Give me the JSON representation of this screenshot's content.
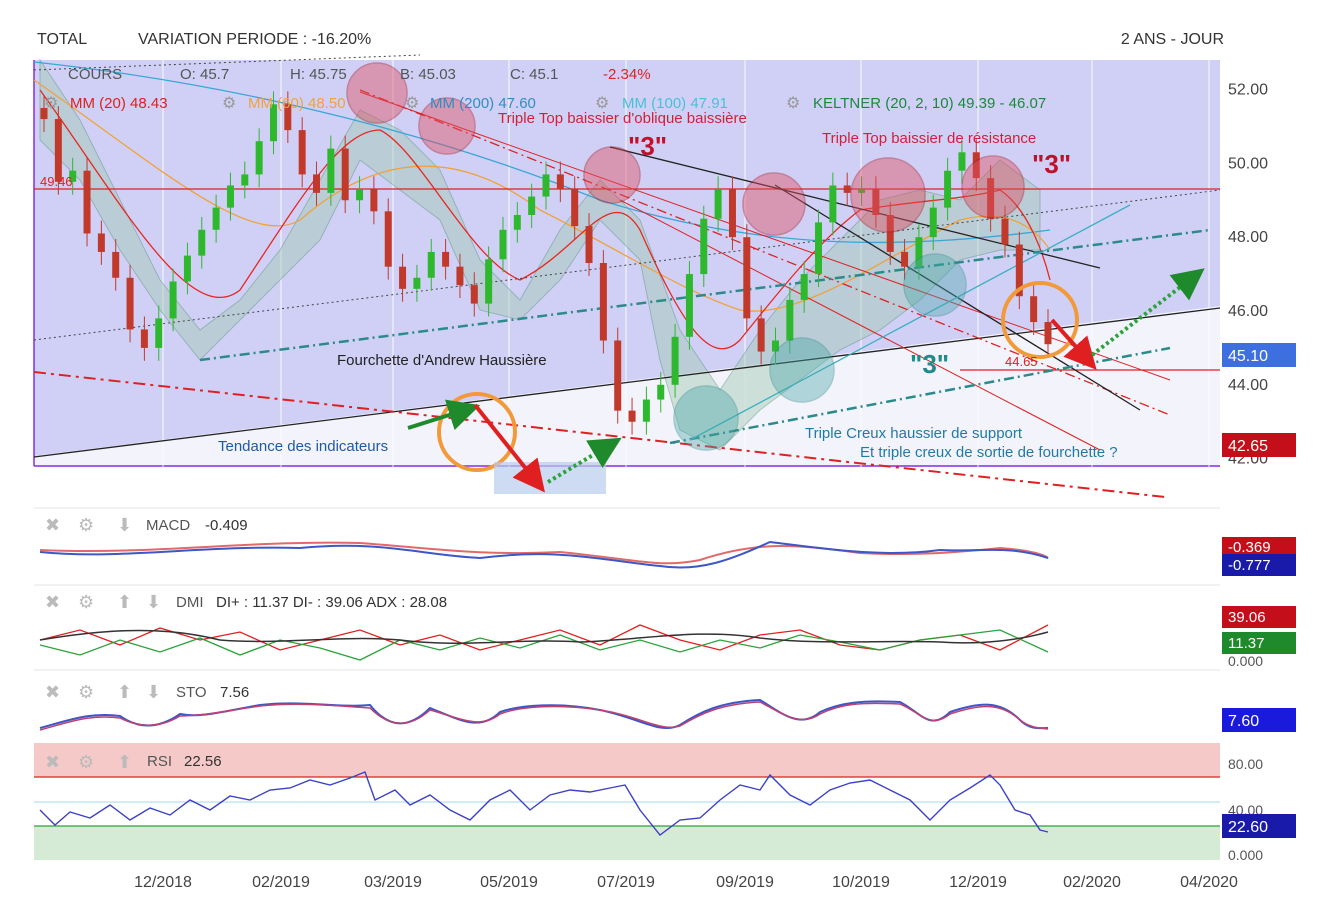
{
  "header": {
    "symbol": "TOTAL",
    "variation": "VARIATION PERIODE : -16.20%",
    "period": "2 ANS - JOUR"
  },
  "legend": {
    "cours_label": "COURS",
    "open": "O: 45.7",
    "high": "H: 45.75",
    "low": "B: 45.03",
    "close": "C: 45.1",
    "change": "-2.34%",
    "mm20": "MM (20) 48.43",
    "mm60": "MM (60) 48.50",
    "mm200": "MM (200) 47.60",
    "mm100": "MM (100) 47.91",
    "keltner": "KELTNER (20, 2, 10) 49.39 - 46.07"
  },
  "annotations": {
    "top_oblique": "Triple Top baissier d'oblique baissière",
    "top_resistance": "Triple Top baissier de résistance",
    "three_a": "\"3\"",
    "three_b": "\"3\"",
    "three_c": "\"3\"",
    "andrew": "Fourchette d'Andrew Haussière",
    "indicators": "Tendance des indicateurs",
    "creux1": "Triple Creux haussier de support",
    "creux2": "Et triple creux de sortie de fourchette ?",
    "level_resistance": "49.46",
    "level_support": "44.65"
  },
  "price_badges": {
    "last": "45.10",
    "low": "42.65"
  },
  "panels": {
    "macd": {
      "label": "MACD",
      "value": "-0.409",
      "badge1": "-0.369",
      "badge2": "-0.777"
    },
    "dmi": {
      "label": "DMI",
      "value": "DI+ : 11.37 DI- : 39.06 ADX : 28.08",
      "badge1": "39.06",
      "badge2": "11.37",
      "axis": "0.000"
    },
    "sto": {
      "label": "STO",
      "value": "7.56",
      "badge": "7.60"
    },
    "rsi": {
      "label": "RSI",
      "value": "22.56",
      "badge": "22.60",
      "ticks": [
        "80.00",
        "40.00",
        "0.000"
      ]
    }
  },
  "colors": {
    "up": "#2eb82e",
    "down": "#c0392b",
    "mm20": "#e8271f",
    "mm60": "#f0a23a",
    "mm200": "#3aa6d8",
    "mm100": "#45c2d6",
    "keltner": "#1a8a3a",
    "bg_main": "#ccccf5",
    "rsi_upper_zone": "#f6c9c9",
    "rsi_lower_zone": "#d6ebd6"
  },
  "chart_data": {
    "type": "line",
    "title": "",
    "xlabel": "",
    "ylabel": "",
    "x_ticks": [
      "12/2018",
      "02/2019",
      "03/2019",
      "05/2019",
      "07/2019",
      "09/2019",
      "10/2019",
      "12/2019",
      "02/2020",
      "04/2020"
    ],
    "y_ticks": [
      "52.00",
      "50.00",
      "48.00",
      "46.00",
      "44.00",
      "42.00"
    ],
    "ylim": [
      41.8,
      52.8
    ],
    "grid": true,
    "series": [
      {
        "name": "COURS",
        "values": [
          51.2,
          49.5,
          49.8,
          48.1,
          47.6,
          46.9,
          45.5,
          45.0,
          45.8,
          46.8,
          47.5,
          48.2,
          48.8,
          49.4,
          49.7,
          50.6,
          51.6,
          50.9,
          49.7,
          49.2,
          50.4,
          49.0,
          49.3,
          48.7,
          47.2,
          46.6,
          46.9,
          47.6,
          47.2,
          46.7,
          46.2,
          47.4,
          48.2,
          48.6,
          49.1,
          49.7,
          49.3,
          48.3,
          47.3,
          45.2,
          43.3,
          43.0,
          43.6,
          44.0,
          45.3,
          47.0,
          48.5,
          49.3,
          48.0,
          45.8,
          44.9,
          45.2,
          46.3,
          47.0,
          48.4,
          49.4,
          49.2,
          49.3,
          48.6,
          47.6,
          47.2,
          48.0,
          48.8,
          49.8,
          50.3,
          49.6,
          48.5,
          47.8,
          46.4,
          45.7,
          45.1
        ]
      }
    ]
  }
}
